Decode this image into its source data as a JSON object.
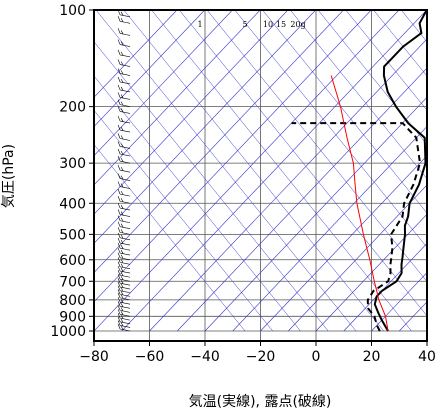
{
  "chart_data": {
    "type": "line",
    "xlabel": "気温(実線), 露点(破線)",
    "ylabel": "気圧(hPa)",
    "xlim": [
      -80,
      40
    ],
    "ylim": [
      1050,
      100
    ],
    "y_scale": "log",
    "x_ticks": [
      "−80",
      "−60",
      "−40",
      "−20",
      "0",
      "20",
      "40"
    ],
    "x_tick_values": [
      -80,
      -60,
      -40,
      -20,
      0,
      20,
      40
    ],
    "y_ticks": [
      "100",
      "200",
      "300",
      "400",
      "500",
      "600",
      "700",
      "800",
      "900",
      "1000"
    ],
    "y_tick_values": [
      100,
      200,
      300,
      400,
      500,
      600,
      700,
      800,
      900,
      1000
    ],
    "mixing_ratio_labels": [
      "1",
      "5",
      "10",
      "15",
      "20g"
    ],
    "mixing_ratio_values": [
      1,
      5,
      10,
      15,
      20
    ],
    "series": [
      {
        "values": [
          [
            26,
            1000
          ],
          [
            24,
            975
          ],
          [
            20,
            925
          ],
          [
            16,
            875
          ],
          [
            12,
            825
          ],
          [
            10,
            780
          ],
          [
            10,
            750
          ],
          [
            12,
            700
          ],
          [
            11,
            660
          ],
          [
            8,
            620
          ],
          [
            6,
            590
          ],
          [
            3,
            550
          ],
          [
            -1,
            500
          ],
          [
            -4,
            470
          ],
          [
            -6,
            440
          ],
          [
            -10,
            400
          ],
          [
            -13,
            350
          ],
          [
            -18,
            300
          ],
          [
            -27,
            250
          ],
          [
            -38,
            225
          ],
          [
            -48,
            200
          ],
          [
            -56,
            180
          ],
          [
            -63,
            160
          ],
          [
            -66,
            150
          ],
          [
            -66,
            130
          ],
          [
            -64,
            118
          ],
          [
            -68,
            110
          ],
          [
            -70,
            100
          ]
        ]
      },
      {
        "values": [
          [
            23,
            1000
          ],
          [
            20,
            960
          ],
          [
            16,
            900
          ],
          [
            11,
            850
          ],
          [
            8,
            800
          ],
          [
            7,
            750
          ],
          [
            9,
            700
          ],
          [
            7,
            660
          ],
          [
            4,
            620
          ],
          [
            2,
            590
          ],
          [
            -1,
            550
          ],
          [
            -6,
            500
          ],
          [
            -7,
            470
          ],
          [
            -8,
            440
          ],
          [
            -12,
            400
          ],
          [
            -15,
            350
          ],
          [
            -20,
            300
          ],
          [
            -30,
            250
          ],
          [
            -40,
            225
          ],
          [
            -80,
            225
          ]
        ]
      },
      {
        "values": [
          [
            26,
            1000
          ],
          [
            20,
            900
          ],
          [
            12,
            800
          ],
          [
            4,
            700
          ],
          [
            -5,
            600
          ],
          [
            -16,
            500
          ],
          [
            -29,
            400
          ],
          [
            -36,
            350
          ],
          [
            -44,
            300
          ],
          [
            -55,
            250
          ],
          [
            -68,
            200
          ],
          [
            -82,
            160
          ]
        ]
      }
    ],
    "series_colors": [
      "#000000",
      "#000000",
      "#ff0000"
    ],
    "grid": true,
    "wind_barbs": {
      "x_position": -67,
      "pressure_levels": [
        1000,
        975,
        950,
        925,
        900,
        875,
        850,
        825,
        800,
        780,
        760,
        740,
        720,
        700,
        680,
        660,
        640,
        620,
        600,
        580,
        560,
        540,
        520,
        500,
        480,
        460,
        440,
        420,
        400,
        380,
        360,
        340,
        320,
        300,
        285,
        270,
        255,
        240,
        225,
        210,
        200,
        190,
        180,
        170,
        160,
        150,
        140,
        130,
        120,
        110,
        105
      ]
    },
    "colors": {
      "isotherm": "#3333cc",
      "grid": "#555555",
      "temperature": "#000000",
      "parcel": "#ff0000"
    }
  }
}
